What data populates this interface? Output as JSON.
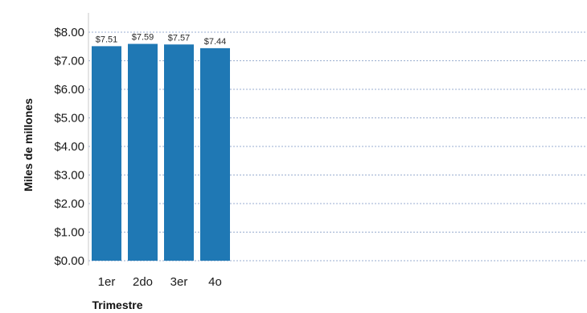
{
  "chart_data": {
    "type": "bar",
    "categories": [
      "1er",
      "2do",
      "3er",
      "4o"
    ],
    "values": [
      7.51,
      7.59,
      7.57,
      7.44
    ],
    "data_labels": [
      "$7.51",
      "$7.59",
      "$7.57",
      "$7.44"
    ],
    "xlabel": "Trimestre",
    "ylabel": "Miles de millones",
    "ylim": [
      0,
      8
    ],
    "y_ticks": [
      {
        "value": 0,
        "label": "$0.00"
      },
      {
        "value": 1,
        "label": "$1.00"
      },
      {
        "value": 2,
        "label": "$2.00"
      },
      {
        "value": 3,
        "label": "$3.00"
      },
      {
        "value": 4,
        "label": "$4.00"
      },
      {
        "value": 5,
        "label": "$5.00"
      },
      {
        "value": 6,
        "label": "$6.00"
      },
      {
        "value": 7,
        "label": "$7.00"
      },
      {
        "value": 8,
        "label": "$8.00"
      }
    ],
    "grid": true,
    "legend": "none",
    "colors": {
      "bar": "#1f78b4",
      "grid": "#9aaed0",
      "axis": "#c8c8c8"
    }
  }
}
